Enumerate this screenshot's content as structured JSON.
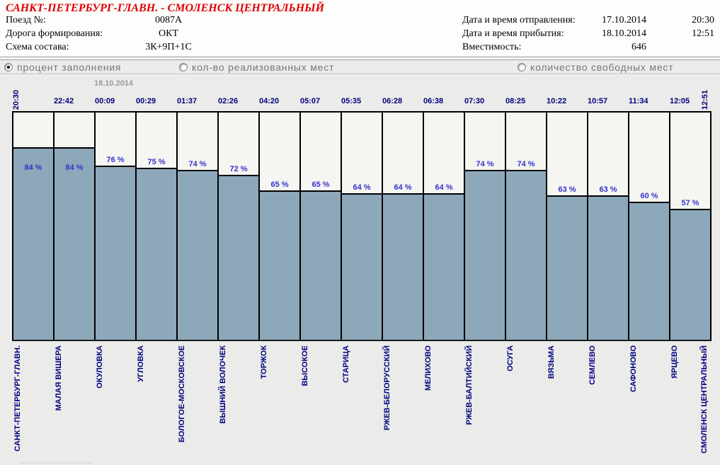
{
  "header": {
    "title": "САНКТ-ПЕТЕРБУРГ-ГЛАВН. - СМОЛЕНСК ЦЕНТРАЛЬНЫЙ",
    "fields_left": [
      {
        "label": "Поезд №:",
        "value": "0087А"
      },
      {
        "label": "Дорога формирования:",
        "value": "ОКТ"
      },
      {
        "label": "Схема состава:",
        "value": "3К+9П+1С"
      }
    ],
    "fields_right": [
      {
        "label": "Дата и время отправления:",
        "date": "17.10.2014",
        "time": "20:30"
      },
      {
        "label": "Дата и время прибытия:",
        "date": "18.10.2014",
        "time": "12:51"
      },
      {
        "label": "Вместимость:",
        "date": "646",
        "time": ""
      }
    ]
  },
  "radios": [
    {
      "label": "процент заполнения",
      "selected": true
    },
    {
      "label": "кол-во реализованных мест",
      "selected": false
    },
    {
      "label": "количество свободных мест",
      "selected": false
    }
  ],
  "chart_data": {
    "type": "bar",
    "title": "",
    "date_annotation": "18.10.2014",
    "unit": "%",
    "ylim": [
      0,
      100
    ],
    "grid": "off",
    "stations": [
      "САНКТ-ПЕТЕРБУРГ-ГЛАВН.",
      "МАЛАЯ ВИШЕРА",
      "ОКУЛОВКА",
      "УГЛОВКА",
      "БОЛОГОЕ-МОСКОВСКОЕ",
      "ВЫШНИЙ ВОЛОЧЕК",
      "ТОРЖОК",
      "ВЫСОКОЕ",
      "СТАРИЦА",
      "РЖЕВ-БЕЛОРУССКИЙ",
      "МЕЛИХОВО",
      "РЖЕВ-БАЛТИЙСКИЙ",
      "ОСУГА",
      "ВЯЗЬМА",
      "СЕМЛЕВО",
      "САФОНОВО",
      "ЯРЦЕВО",
      "СМОЛЕНСК ЦЕНТРАЛЬНЫЙ"
    ],
    "times": [
      "20:30",
      "22:42",
      "00:09",
      "00:29",
      "01:37",
      "02:26",
      "04:20",
      "05:07",
      "05:35",
      "06:28",
      "06:38",
      "07:30",
      "08:25",
      "10:22",
      "10:57",
      "11:34",
      "12:05",
      "12:51"
    ],
    "values": [
      84,
      84,
      76,
      75,
      74,
      72,
      65,
      65,
      64,
      64,
      64,
      74,
      74,
      63,
      63,
      60,
      57
    ],
    "value_labels": [
      "84 %",
      "84 %",
      "76 %",
      "75 %",
      "74 %",
      "72 %",
      "65 %",
      "65 %",
      "64 %",
      "64 %",
      "64 %",
      "74 %",
      "74 %",
      "63 %",
      "63 %",
      "60 %",
      "57 %"
    ],
    "colors": {
      "bar_fill": "#8ea8bb",
      "bar_border": "#000000",
      "axis_label": "#000080",
      "value_label": "#3333cc",
      "title_red": "#dd0000",
      "plot_bg": "#f5f5f2",
      "page_bg": "#ebebe9"
    }
  }
}
